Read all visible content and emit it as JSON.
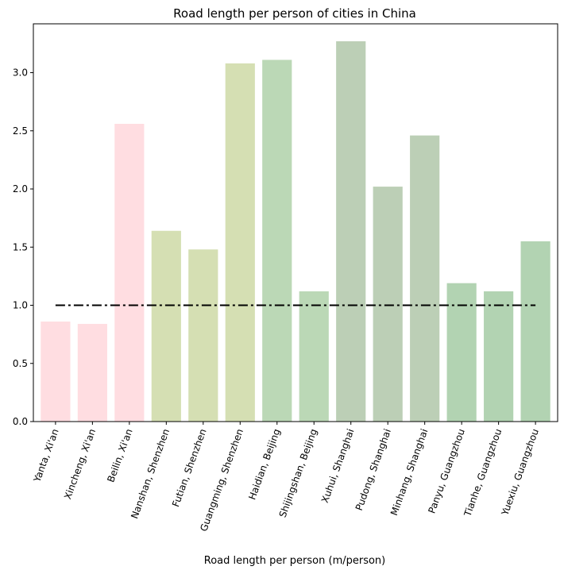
{
  "chart_data": {
    "type": "bar",
    "title": "Road length per person of cities in China",
    "xlabel": "Road length per person (m/person)",
    "ylabel": "",
    "ylim": [
      0,
      3.42
    ],
    "yticks": [
      0.0,
      0.5,
      1.0,
      1.5,
      2.0,
      2.5,
      3.0
    ],
    "ytick_labels": [
      "0.0",
      "0.5",
      "1.0",
      "1.5",
      "2.0",
      "2.5",
      "3.0"
    ],
    "categories": [
      "Yanta, Xi'an",
      "Xincheng, Xi'an",
      "Beilin, Xi'an",
      "Nanshan, Shenzhen",
      "Futian, Shenzhen",
      "Guangming, Shenzhen",
      "Haidian, Beijing",
      "Shijingshan, Beijing",
      "Xuhui, Shanghai",
      "Pudong, Shanghai",
      "Minhang, Shanghai",
      "Panyu, Guangzhou",
      "Tianhe, Guangzhou",
      "Yuexiu, Guangzhou"
    ],
    "values": [
      0.86,
      0.84,
      2.56,
      1.64,
      1.48,
      3.08,
      3.11,
      1.12,
      3.27,
      2.02,
      2.46,
      1.19,
      1.12,
      1.55
    ],
    "colors": [
      "#ffdde1",
      "#ffdde1",
      "#ffdde1",
      "#d5dfb3",
      "#d5dfb3",
      "#d5dfb3",
      "#bbd8b6",
      "#bbd8b6",
      "#bccfb6",
      "#bccfb6",
      "#bccfb6",
      "#b2d3b2",
      "#b2d3b2",
      "#b2d3b2"
    ],
    "reference_line": {
      "value": 1.0,
      "style": "dash-dot",
      "color": "#000000"
    },
    "grid": false,
    "legend": "none"
  }
}
